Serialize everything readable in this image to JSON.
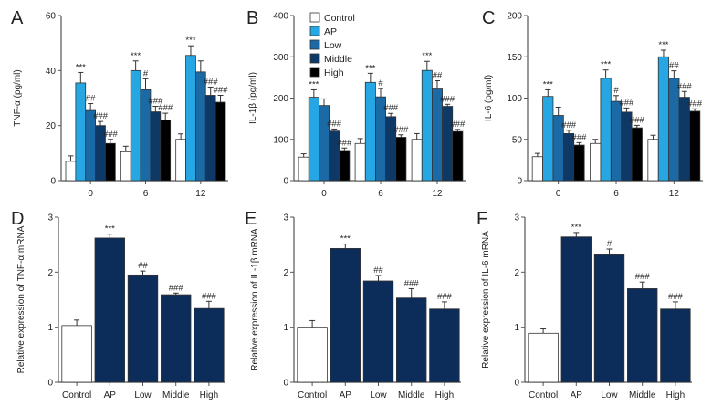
{
  "colors": {
    "Control": "#ffffff",
    "AP": "#26a6e2",
    "Low": "#1b6aa6",
    "Middle": "#0e3866",
    "High": "#000000",
    "single": "#0c2c5a"
  },
  "legend": [
    "Control",
    "AP",
    "Low",
    "Middle",
    "High"
  ],
  "chart_data": [
    {
      "panel": "A",
      "type": "bar",
      "ylabel": "TNF-α (pg/ml)",
      "ylim": [
        0,
        60
      ],
      "yticks": [
        0,
        20,
        40,
        60
      ],
      "categories": [
        "0",
        "6",
        "12"
      ],
      "series": [
        {
          "name": "Control",
          "values": [
            7,
            10.5,
            15
          ],
          "errors": [
            2,
            2,
            2
          ],
          "annotations": [
            "",
            "",
            ""
          ]
        },
        {
          "name": "AP",
          "values": [
            35.5,
            40,
            45.5
          ],
          "errors": [
            3.8,
            3.5,
            3.5
          ],
          "annotations": [
            "***",
            "***",
            "***"
          ]
        },
        {
          "name": "Low",
          "values": [
            25.5,
            33,
            39.5
          ],
          "errors": [
            2.5,
            4,
            4
          ],
          "annotations": [
            "##",
            "#",
            ""
          ]
        },
        {
          "name": "Middle",
          "values": [
            20,
            25,
            31
          ],
          "errors": [
            1.5,
            2,
            3
          ],
          "annotations": [
            "###",
            "###",
            "###"
          ]
        },
        {
          "name": "High",
          "values": [
            13.5,
            22,
            28.5
          ],
          "errors": [
            1.5,
            2.5,
            2.5
          ],
          "annotations": [
            "###",
            "###",
            "###"
          ]
        }
      ]
    },
    {
      "panel": "B",
      "type": "bar",
      "ylabel": "IL-1β (pg/ml)",
      "ylim": [
        0,
        400
      ],
      "yticks": [
        0,
        100,
        200,
        300,
        400
      ],
      "categories": [
        "0",
        "6",
        "12"
      ],
      "legend": "top-left",
      "series": [
        {
          "name": "Control",
          "values": [
            57,
            90,
            100
          ],
          "errors": [
            8,
            12,
            14
          ],
          "annotations": [
            "",
            "",
            ""
          ]
        },
        {
          "name": "AP",
          "values": [
            202,
            238,
            267
          ],
          "errors": [
            18,
            22,
            22
          ],
          "annotations": [
            "***",
            "***",
            "***"
          ]
        },
        {
          "name": "Low",
          "values": [
            182,
            203,
            222
          ],
          "errors": [
            16,
            20,
            20
          ],
          "annotations": [
            "",
            "#",
            "##"
          ]
        },
        {
          "name": "Middle",
          "values": [
            120,
            155,
            180
          ],
          "errors": [
            5,
            8,
            5
          ],
          "annotations": [
            "###",
            "###",
            "###"
          ]
        },
        {
          "name": "High",
          "values": [
            73,
            105,
            119
          ],
          "errors": [
            6,
            6,
            5
          ],
          "annotations": [
            "###",
            "###",
            "###"
          ]
        }
      ]
    },
    {
      "panel": "C",
      "type": "bar",
      "ylabel": "IL-6 (pg/ml)",
      "ylim": [
        0,
        200
      ],
      "yticks": [
        0,
        50,
        100,
        150,
        200
      ],
      "categories": [
        "0",
        "6",
        "12"
      ],
      "series": [
        {
          "name": "Control",
          "values": [
            29,
            45,
            50
          ],
          "errors": [
            4,
            5,
            5
          ],
          "annotations": [
            "",
            "",
            ""
          ]
        },
        {
          "name": "AP",
          "values": [
            102,
            124,
            150
          ],
          "errors": [
            8,
            10,
            8
          ],
          "annotations": [
            "***",
            "***",
            "***"
          ]
        },
        {
          "name": "Low",
          "values": [
            79,
            96,
            124
          ],
          "errors": [
            10,
            7,
            9
          ],
          "annotations": [
            "",
            "#",
            "##"
          ]
        },
        {
          "name": "Middle",
          "values": [
            57,
            83,
            101
          ],
          "errors": [
            4,
            5,
            7
          ],
          "annotations": [
            "###",
            "###",
            "###"
          ]
        },
        {
          "name": "High",
          "values": [
            43,
            64,
            84
          ],
          "errors": [
            3,
            3,
            3
          ],
          "annotations": [
            "###",
            "###",
            "###"
          ]
        }
      ]
    },
    {
      "panel": "D",
      "type": "bar",
      "ylabel": "Relative expression of TNF-α mRNA",
      "ylim": [
        0,
        3
      ],
      "yticks": [
        0,
        1,
        2,
        3
      ],
      "categories": [
        "Control",
        "AP",
        "Low",
        "Middle",
        "High"
      ],
      "values": [
        1.03,
        2.62,
        1.95,
        1.59,
        1.34
      ],
      "errors": [
        0.1,
        0.07,
        0.07,
        0.03,
        0.13
      ],
      "annotations": [
        "",
        "***",
        "##",
        "###",
        "###"
      ]
    },
    {
      "panel": "E",
      "type": "bar",
      "ylabel": "Relative expression of IL-1β mRNA",
      "ylim": [
        0,
        3
      ],
      "yticks": [
        0,
        1,
        2,
        3
      ],
      "categories": [
        "Control",
        "AP",
        "Low",
        "Middle",
        "High"
      ],
      "values": [
        1.0,
        2.43,
        1.84,
        1.53,
        1.33
      ],
      "errors": [
        0.12,
        0.08,
        0.1,
        0.17,
        0.13
      ],
      "annotations": [
        "",
        "***",
        "##",
        "###",
        "###"
      ]
    },
    {
      "panel": "F",
      "type": "bar",
      "ylabel": "Relative expression of IL-6 mRNA",
      "ylim": [
        0,
        3
      ],
      "yticks": [
        0,
        1,
        2,
        3
      ],
      "categories": [
        "Control",
        "AP",
        "Low",
        "Middle",
        "High"
      ],
      "values": [
        0.89,
        2.64,
        2.33,
        1.7,
        1.33
      ],
      "errors": [
        0.08,
        0.08,
        0.09,
        0.12,
        0.13
      ],
      "annotations": [
        "",
        "***",
        "#",
        "###",
        "###"
      ]
    }
  ]
}
